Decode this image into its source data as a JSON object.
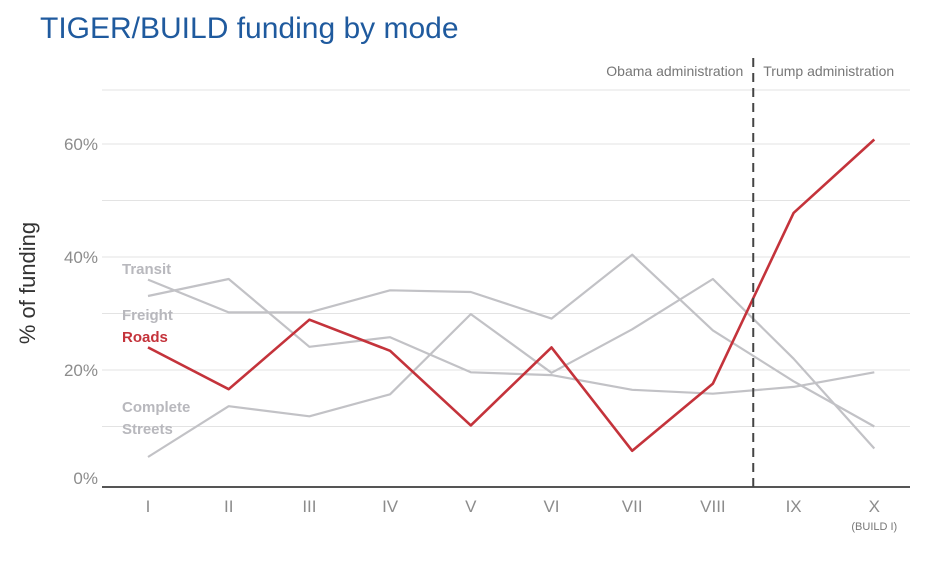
{
  "title": "TIGER/BUILD funding by mode",
  "chart_data": {
    "type": "line",
    "ylabel": "% of funding",
    "ylim": [
      0,
      70
    ],
    "yticks": [
      0,
      20,
      40,
      60
    ],
    "ytick_labels": [
      "0%",
      "20%",
      "40%",
      "60%"
    ],
    "grid": true,
    "categories": [
      "I",
      "II",
      "III",
      "IV",
      "V",
      "VI",
      "VII",
      "VIII",
      "IX",
      "X"
    ],
    "category_note": {
      "index": 9,
      "text": "(BUILD I)"
    },
    "annotations": {
      "divider_after_index": 7,
      "left_label": "Obama administration",
      "right_label": "Trump administration"
    },
    "series": [
      {
        "name": "Transit",
        "label_lines": [
          "Transit"
        ],
        "color": "#c2c2c6",
        "values": [
          36,
          30.2,
          30.2,
          34.1,
          33.8,
          29.1,
          40.4,
          27,
          18,
          10
        ]
      },
      {
        "name": "Freight",
        "label_lines": [
          "Freight"
        ],
        "color": "#c2c2c6",
        "values": [
          33.1,
          36.1,
          24.1,
          25.8,
          19.6,
          19.1,
          16.5,
          15.8,
          17,
          19.6
        ]
      },
      {
        "name": "Complete Streets",
        "label_lines": [
          "Complete",
          "Streets"
        ],
        "color": "#c2c2c6",
        "values": [
          4.6,
          13.6,
          11.8,
          15.7,
          29.9,
          19.5,
          27.2,
          36.1,
          22,
          6.1
        ]
      },
      {
        "name": "Roads",
        "label_lines": [
          "Roads"
        ],
        "color": "#c4333b",
        "values": [
          24,
          16.6,
          28.9,
          23.4,
          10.2,
          24,
          5.7,
          17.6,
          47.8,
          60.8
        ]
      }
    ]
  }
}
